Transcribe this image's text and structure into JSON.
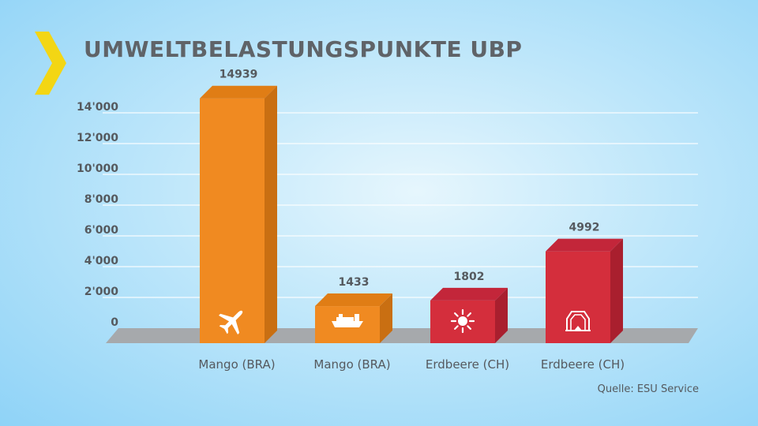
{
  "header": {
    "title": "UMWELTBELASTUNGSPUNKTE UBP"
  },
  "footer": {
    "source": "Quelle: ESU Service"
  },
  "chart_data": {
    "type": "bar",
    "title": "UMWELTBELASTUNGSPUNKTE UBP",
    "xlabel": "",
    "ylabel": "",
    "ylim": [
      0,
      14000
    ],
    "yticks": [
      0,
      2000,
      4000,
      6000,
      8000,
      10000,
      12000,
      14000
    ],
    "ytick_labels": [
      "0",
      "2'000",
      "4'000",
      "6'000",
      "8'000",
      "10'000",
      "12'000",
      "14'000"
    ],
    "grid": true,
    "categories": [
      "Mango (BRA)",
      "Mango (BRA)",
      "Erdbeere (CH)",
      "Erdbeere (CH)"
    ],
    "values": [
      14939,
      1433,
      1802,
      4992
    ],
    "data_labels": [
      "14939",
      "1433",
      "1802",
      "4992"
    ],
    "bar_icons": [
      "airplane-icon",
      "cargo-ship-icon",
      "sun-icon",
      "greenhouse-icon"
    ],
    "colors": {
      "orange": "#f08a21",
      "red": "#d42e3c"
    },
    "bar_colors": [
      "orange",
      "orange",
      "red",
      "red"
    ]
  }
}
